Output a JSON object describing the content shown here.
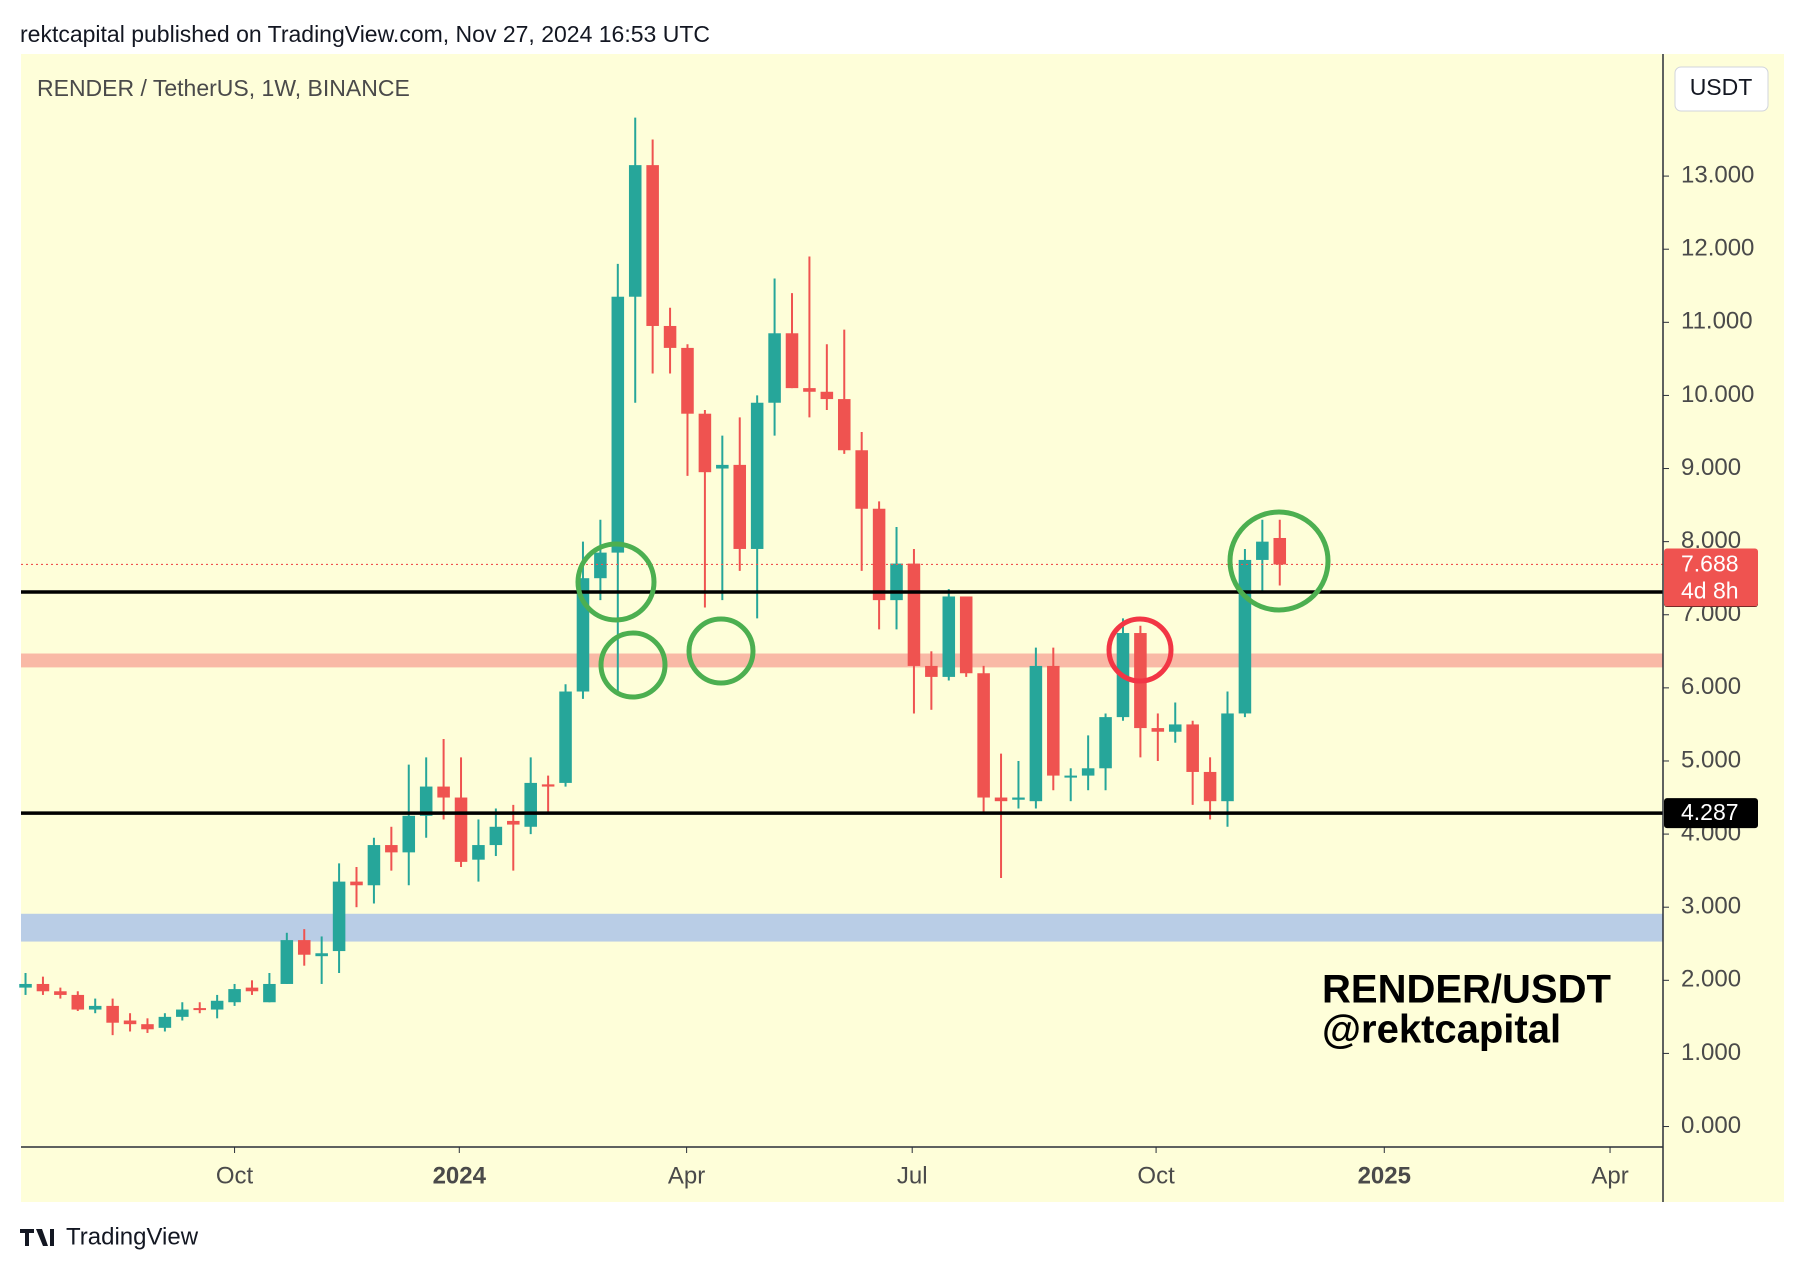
{
  "header": "rektcapital published on TradingView.com, Nov 27, 2024 16:53 UTC",
  "footer": "TradingView",
  "chart_data": {
    "type": "candlestick",
    "title": "RENDER / TetherUS, 1W, BINANCE",
    "currency_button": "USDT",
    "watermark": [
      "RENDER/USDT",
      "@rektcapital"
    ],
    "up_color": "#26a69a",
    "down_color": "#ef5350",
    "background": "#fefed9",
    "open": [
      1.9,
      1.95,
      1.85,
      1.8,
      1.6,
      1.65,
      1.45,
      1.4,
      1.35,
      1.5,
      1.62,
      1.6,
      1.7,
      1.9,
      1.7,
      1.95,
      2.55,
      2.33,
      2.4,
      3.35,
      3.3,
      3.85,
      3.75,
      4.25,
      4.65,
      4.5,
      3.65,
      3.85,
      4.18,
      4.1,
      4.68,
      4.7,
      5.95,
      7.5,
      7.85,
      11.35,
      13.15,
      10.95,
      10.65,
      9.75,
      9.0,
      9.05,
      7.9,
      9.9,
      10.85,
      10.1,
      10.05,
      9.95,
      9.25,
      8.45,
      7.2,
      7.7,
      6.3,
      6.15,
      7.25,
      6.2,
      4.5,
      4.47,
      4.45,
      6.3,
      4.78,
      4.8,
      4.9,
      5.6,
      6.75,
      5.45,
      5.4,
      5.5,
      4.85,
      4.45,
      5.65,
      7.75,
      8.05
    ],
    "high": [
      2.1,
      2.05,
      1.9,
      1.85,
      1.75,
      1.75,
      1.55,
      1.48,
      1.55,
      1.7,
      1.7,
      1.8,
      1.95,
      2.0,
      2.1,
      2.65,
      2.7,
      2.6,
      3.6,
      3.55,
      3.95,
      4.1,
      4.95,
      5.05,
      5.3,
      5.05,
      4.2,
      4.35,
      4.4,
      5.05,
      4.8,
      6.05,
      8.0,
      8.3,
      11.8,
      13.8,
      13.5,
      11.2,
      10.7,
      9.8,
      9.45,
      9.7,
      10.0,
      11.6,
      11.4,
      11.9,
      10.7,
      10.9,
      9.5,
      8.55,
      8.2,
      7.9,
      6.5,
      7.35,
      7.25,
      6.3,
      5.1,
      5.0,
      6.55,
      6.55,
      4.9,
      5.35,
      5.65,
      6.95,
      6.85,
      5.65,
      5.8,
      5.55,
      5.05,
      5.95,
      7.9,
      8.3,
      8.3
    ],
    "low": [
      1.8,
      1.8,
      1.75,
      1.58,
      1.55,
      1.25,
      1.3,
      1.28,
      1.3,
      1.45,
      1.55,
      1.48,
      1.65,
      1.8,
      1.7,
      1.95,
      2.2,
      1.95,
      2.1,
      3.0,
      3.05,
      3.5,
      3.3,
      3.95,
      4.2,
      3.55,
      3.35,
      3.7,
      3.5,
      4.0,
      4.3,
      4.65,
      5.85,
      7.2,
      5.9,
      9.9,
      10.3,
      10.3,
      8.9,
      7.1,
      7.2,
      7.6,
      6.95,
      9.45,
      10.1,
      9.7,
      9.8,
      9.2,
      7.6,
      6.8,
      6.8,
      5.65,
      5.7,
      6.1,
      6.15,
      4.3,
      3.4,
      4.35,
      4.35,
      4.6,
      4.45,
      4.6,
      4.6,
      5.55,
      5.05,
      5.0,
      5.25,
      4.4,
      4.2,
      4.1,
      5.6,
      7.3,
      7.4
    ],
    "close": [
      1.95,
      1.85,
      1.8,
      1.6,
      1.65,
      1.42,
      1.4,
      1.33,
      1.5,
      1.6,
      1.6,
      1.72,
      1.88,
      1.85,
      1.95,
      2.55,
      2.35,
      2.37,
      3.35,
      3.3,
      3.85,
      3.75,
      4.25,
      4.65,
      4.5,
      3.62,
      3.85,
      4.1,
      4.13,
      4.7,
      4.65,
      5.95,
      7.5,
      7.85,
      11.35,
      13.15,
      10.95,
      10.65,
      9.75,
      8.95,
      9.05,
      7.9,
      9.9,
      10.85,
      10.1,
      10.05,
      9.95,
      9.25,
      8.45,
      7.2,
      7.7,
      6.3,
      6.15,
      7.25,
      6.2,
      4.5,
      4.45,
      4.5,
      6.3,
      4.8,
      4.8,
      4.9,
      5.6,
      6.75,
      5.45,
      5.4,
      5.5,
      4.85,
      4.45,
      5.65,
      7.75,
      8.0,
      7.688
    ],
    "xlim": [
      -0.26,
      94.0
    ],
    "xticks": [
      {
        "value": 12,
        "label": "Oct"
      },
      {
        "value": 24.9,
        "label": "2024"
      },
      {
        "value": 37.95,
        "label": "Apr"
      },
      {
        "value": 50.9,
        "label": "Jul"
      },
      {
        "value": 64.9,
        "label": "Oct"
      },
      {
        "value": 78.0,
        "label": "2025"
      },
      {
        "value": 90.96,
        "label": "Apr"
      }
    ],
    "ylim": [
      -0.28,
      14.67
    ],
    "yticks": [
      {
        "value": 0,
        "label": "0.000"
      },
      {
        "value": 1,
        "label": "1.000"
      },
      {
        "value": 2,
        "label": "2.000"
      },
      {
        "value": 3,
        "label": "3.000"
      },
      {
        "value": 4,
        "label": "4.000"
      },
      {
        "value": 5,
        "label": "5.000"
      },
      {
        "value": 6,
        "label": "6.000"
      },
      {
        "value": 7,
        "label": "7.000"
      },
      {
        "value": 8,
        "label": "8.000"
      },
      {
        "value": 9,
        "label": "9.000"
      },
      {
        "value": 10,
        "label": "10.000"
      },
      {
        "value": 11,
        "label": "11.000"
      },
      {
        "value": 12,
        "label": "12.000"
      },
      {
        "value": 13,
        "label": "13.000"
      }
    ],
    "zones": [
      {
        "range": [
          6.28,
          6.47
        ],
        "color": "#f9b9a6"
      },
      {
        "range": [
          2.53,
          2.91
        ],
        "color": "#b9cde6"
      }
    ],
    "levels": [
      {
        "value": 7.312,
        "color": "#000000"
      },
      {
        "value": 4.287,
        "color": "#000000"
      }
    ],
    "last_price": 7.688,
    "countdown": "4d 8h"
  }
}
